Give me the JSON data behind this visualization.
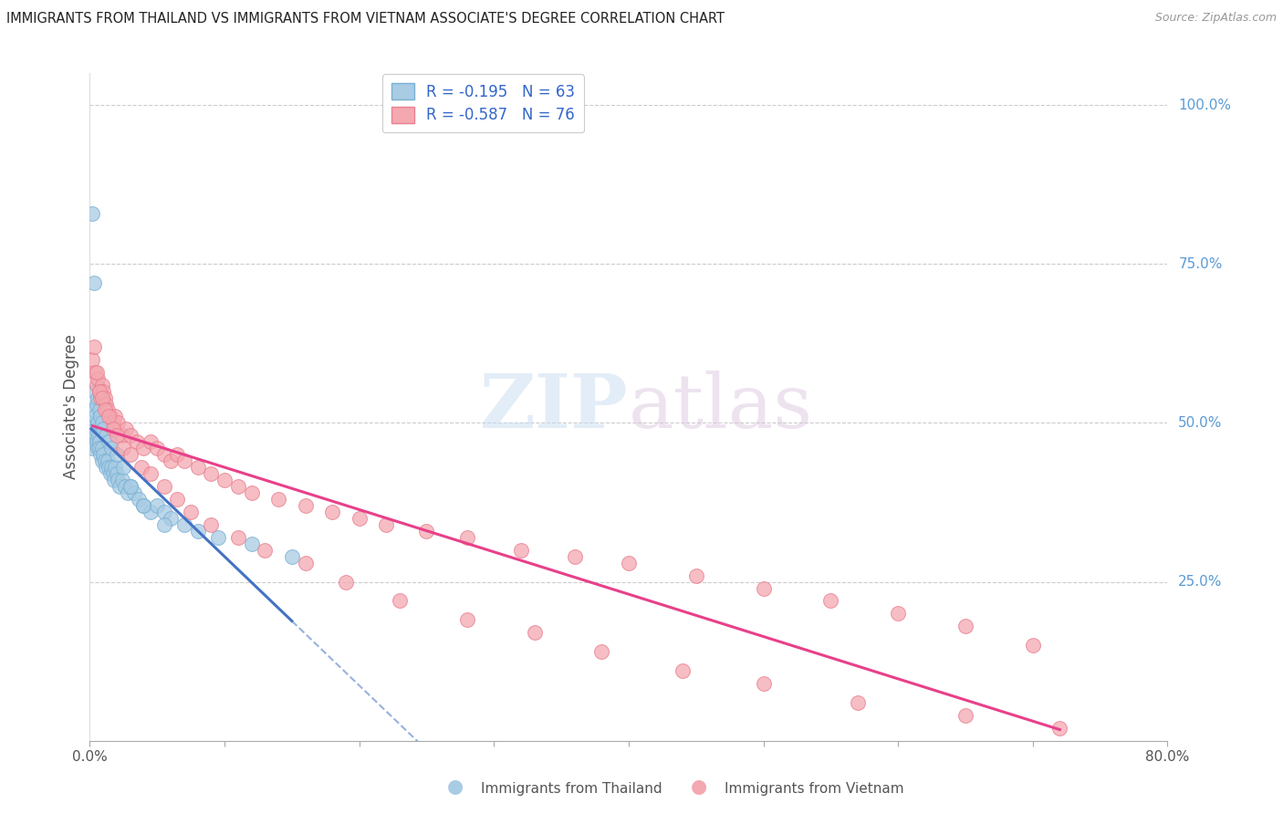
{
  "title": "IMMIGRANTS FROM THAILAND VS IMMIGRANTS FROM VIETNAM ASSOCIATE'S DEGREE CORRELATION CHART",
  "source": "Source: ZipAtlas.com",
  "ylabel": "Associate's Degree",
  "right_ytick_labels": [
    "100.0%",
    "75.0%",
    "50.0%",
    "25.0%"
  ],
  "right_ytick_values": [
    100.0,
    75.0,
    50.0,
    25.0
  ],
  "xlim": [
    0.0,
    80.0
  ],
  "ylim": [
    0.0,
    105.0
  ],
  "xtick_values": [
    0,
    10,
    20,
    30,
    40,
    50,
    60,
    70,
    80
  ],
  "thailand_R": -0.195,
  "thailand_N": 63,
  "vietnam_R": -0.587,
  "vietnam_N": 76,
  "thailand_scatter_color": "#a8cce4",
  "thailand_scatter_edge": "#7ab0d4",
  "vietnam_scatter_color": "#f4a8b0",
  "vietnam_scatter_edge": "#e88090",
  "trend_thailand_color": "#4472c4",
  "trend_vietnam_color": "#e8408a",
  "legend_label_1": "Immigrants from Thailand",
  "legend_label_2": "Immigrants from Vietnam",
  "thailand_x": [
    0.1,
    0.15,
    0.2,
    0.25,
    0.3,
    0.35,
    0.4,
    0.45,
    0.5,
    0.55,
    0.6,
    0.65,
    0.7,
    0.75,
    0.8,
    0.9,
    0.95,
    1.0,
    1.1,
    1.2,
    1.3,
    1.4,
    1.5,
    1.6,
    1.7,
    1.8,
    1.9,
    2.0,
    2.1,
    2.2,
    2.4,
    2.6,
    2.8,
    3.0,
    3.3,
    3.6,
    4.0,
    4.5,
    5.0,
    5.5,
    6.0,
    7.0,
    8.0,
    9.5,
    12.0,
    15.0,
    0.2,
    0.3,
    0.4,
    0.5,
    0.6,
    0.7,
    0.8,
    0.9,
    1.0,
    1.2,
    1.4,
    1.6,
    2.0,
    2.5,
    3.0,
    4.0,
    5.5
  ],
  "thailand_y": [
    47.0,
    46.0,
    50.0,
    48.0,
    52.0,
    49.0,
    51.0,
    48.0,
    47.0,
    46.0,
    50.0,
    48.0,
    47.0,
    46.0,
    45.0,
    44.0,
    46.0,
    45.0,
    44.0,
    43.0,
    44.0,
    43.0,
    42.0,
    43.0,
    42.0,
    41.0,
    43.0,
    42.0,
    41.0,
    40.0,
    41.0,
    40.0,
    39.0,
    40.0,
    39.0,
    38.0,
    37.0,
    36.0,
    37.0,
    36.0,
    35.0,
    34.0,
    33.0,
    32.0,
    31.0,
    29.0,
    83.0,
    72.0,
    55.0,
    53.0,
    54.0,
    52.0,
    51.0,
    50.0,
    49.0,
    48.0,
    47.0,
    46.0,
    45.0,
    43.0,
    40.0,
    37.0,
    34.0
  ],
  "vietnam_x": [
    0.2,
    0.4,
    0.5,
    0.6,
    0.7,
    0.8,
    0.9,
    1.0,
    1.1,
    1.2,
    1.3,
    1.5,
    1.7,
    1.9,
    2.1,
    2.4,
    2.7,
    3.0,
    3.5,
    4.0,
    4.5,
    5.0,
    5.5,
    6.0,
    6.5,
    7.0,
    8.0,
    9.0,
    10.0,
    11.0,
    12.0,
    14.0,
    16.0,
    18.0,
    20.0,
    22.0,
    25.0,
    28.0,
    32.0,
    36.0,
    40.0,
    45.0,
    50.0,
    55.0,
    60.0,
    65.0,
    70.0,
    0.3,
    0.5,
    0.7,
    0.9,
    1.1,
    1.4,
    1.7,
    2.0,
    2.5,
    3.0,
    3.8,
    4.5,
    5.5,
    6.5,
    7.5,
    9.0,
    11.0,
    13.0,
    16.0,
    19.0,
    23.0,
    28.0,
    33.0,
    38.0,
    44.0,
    50.0,
    57.0,
    65.0,
    72.0
  ],
  "vietnam_y": [
    60.0,
    58.0,
    56.0,
    57.0,
    55.0,
    54.0,
    56.0,
    55.0,
    54.0,
    53.0,
    52.0,
    51.0,
    50.0,
    51.0,
    50.0,
    48.0,
    49.0,
    48.0,
    47.0,
    46.0,
    47.0,
    46.0,
    45.0,
    44.0,
    45.0,
    44.0,
    43.0,
    42.0,
    41.0,
    40.0,
    39.0,
    38.0,
    37.0,
    36.0,
    35.0,
    34.0,
    33.0,
    32.0,
    30.0,
    29.0,
    28.0,
    26.0,
    24.0,
    22.0,
    20.0,
    18.0,
    15.0,
    62.0,
    58.0,
    55.0,
    54.0,
    52.0,
    51.0,
    49.0,
    48.0,
    46.0,
    45.0,
    43.0,
    42.0,
    40.0,
    38.0,
    36.0,
    34.0,
    32.0,
    30.0,
    28.0,
    25.0,
    22.0,
    19.0,
    17.0,
    14.0,
    11.0,
    9.0,
    6.0,
    4.0,
    2.0
  ]
}
